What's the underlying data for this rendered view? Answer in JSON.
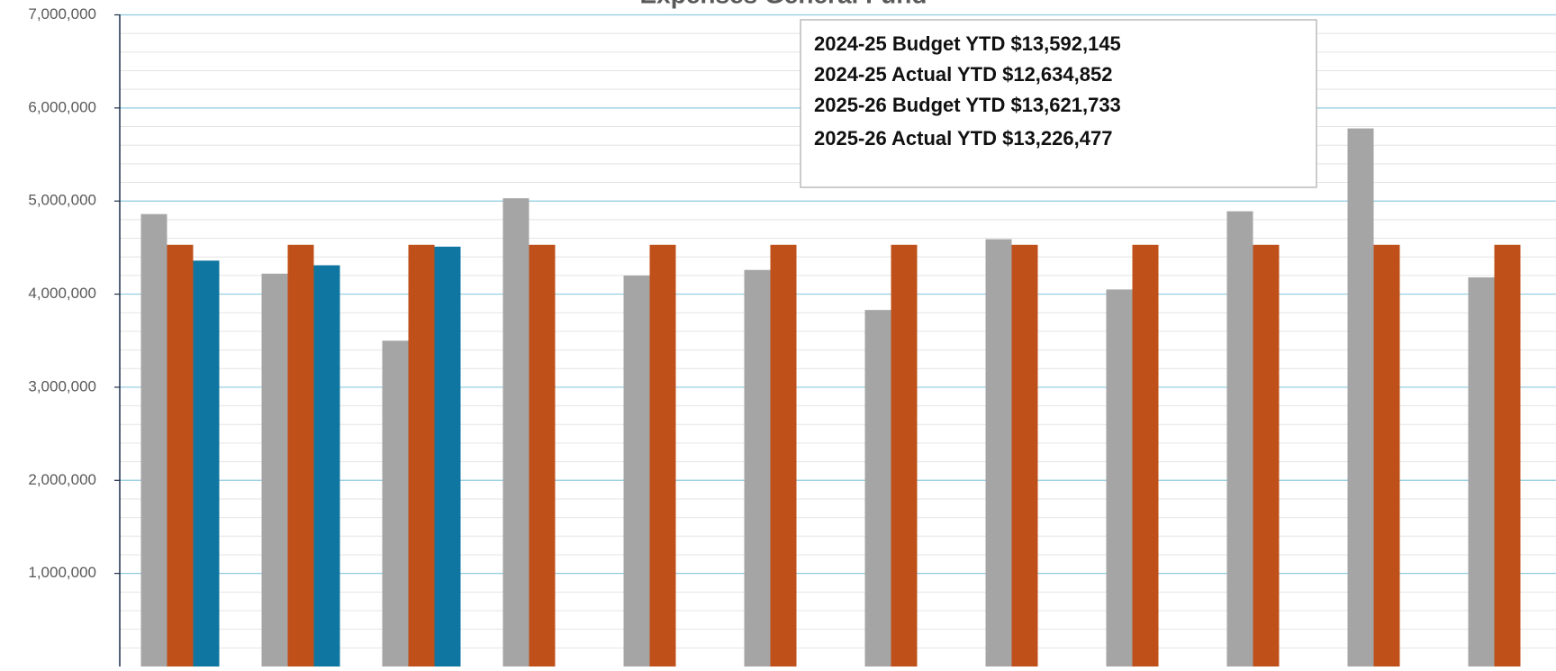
{
  "chart_data": {
    "type": "bar",
    "title": "Expenses General Fund",
    "categories": [
      null,
      null,
      null,
      null,
      null,
      null,
      null,
      null,
      null,
      null,
      null,
      null
    ],
    "series": [
      {
        "color": "#a5a5a5",
        "values": [
          4860000,
          4220000,
          3500000,
          5030000,
          4200000,
          4260000,
          3830000,
          4590000,
          4050000,
          4890000,
          5780000,
          4180000
        ]
      },
      {
        "color": "#c0501a",
        "values": [
          4530000,
          4530000,
          4530000,
          4530000,
          4530000,
          4530000,
          4530000,
          4530000,
          4530000,
          4530000,
          4530000,
          4530000
        ]
      },
      {
        "color": "#0e76a0",
        "values": [
          4360000,
          4310000,
          4510000,
          null,
          null,
          null,
          null,
          null,
          null,
          null,
          null,
          null
        ]
      }
    ],
    "ylim": [
      0,
      7000000
    ],
    "yticks": [
      {
        "value": 1000000,
        "label": "1,000,000"
      },
      {
        "value": 2000000,
        "label": "2,000,000"
      },
      {
        "value": 3000000,
        "label": "3,000,000"
      },
      {
        "value": 4000000,
        "label": "4,000,000"
      },
      {
        "value": 5000000,
        "label": "5,000,000"
      },
      {
        "value": 6000000,
        "label": "6,000,000"
      },
      {
        "value": 7000000,
        "label": "7,000,000"
      }
    ],
    "grid": true,
    "annotations": [
      "2024-25 Budget YTD $13,592,145",
      "2024-25 Actual YTD  $12,634,852",
      "2025-26 Budget YTD $13,621,733",
      "2025-26 Actual YTD  $13,226,477"
    ]
  }
}
